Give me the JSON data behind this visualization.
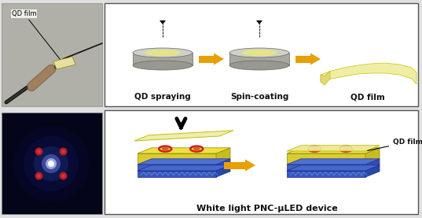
{
  "bg_color": "#e0e0e0",
  "panel_bg": "#ffffff",
  "title1": "QD spraying",
  "title2": "Spin-coating",
  "title3": "QD film",
  "title4": "White light PNC-μLED device",
  "qd_film_label": "QD film",
  "arrow_orange": "#e8a000",
  "disk_top_color": "#d0d0c8",
  "disk_side_color": "#a8a8a0",
  "disk_center_color": "#e8e890",
  "yellow_film_color": "#f0eda0",
  "led_yellow": "#f0e040",
  "led_blue_dark": "#3050b0",
  "led_blue_light": "#5070c8",
  "led_red": "#cc2020",
  "led_orange_fill": "#e05020",
  "font_size": 7.5
}
